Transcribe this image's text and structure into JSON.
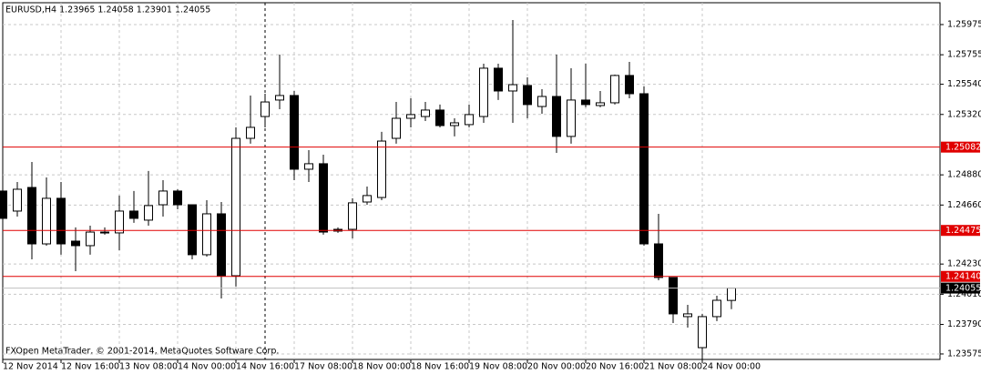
{
  "chart_data": {
    "type": "candlestick",
    "title": "EURUSD,H4  1.23965 1.24058 1.23901 1.24055",
    "annotation": "FXOpen MetaTrader, © 2001-2014, MetaQuotes Software Corp.",
    "categories": [
      "12 Nov 2014",
      null,
      null,
      null,
      "12 Nov 16:00",
      null,
      null,
      null,
      "13 Nov 08:00",
      null,
      null,
      null,
      "14 Nov 00:00",
      null,
      null,
      null,
      "14 Nov 16:00",
      null,
      null,
      null,
      "17 Nov 08:00",
      null,
      null,
      null,
      "18 Nov 00:00",
      null,
      null,
      null,
      "18 Nov 16:00",
      null,
      null,
      null,
      "19 Nov 08:00",
      null,
      null,
      null,
      "20 Nov 00:00",
      null,
      null,
      null,
      "20 Nov 16:00",
      null,
      null,
      null,
      "21 Nov 08:00",
      null,
      null,
      null,
      "24 Nov 00:00",
      null,
      null
    ],
    "open": [
      1.24762,
      1.24616,
      1.24788,
      1.24377,
      1.24709,
      1.24397,
      1.24364,
      1.24463,
      1.24457,
      1.24616,
      1.2455,
      1.24662,
      1.24762,
      1.24662,
      1.24298,
      1.24596,
      1.24145,
      1.25146,
      1.25305,
      1.25425,
      1.25458,
      1.24921,
      1.24961,
      1.24483,
      1.24483,
      1.24682,
      1.24715,
      1.25146,
      1.25292,
      1.25305,
      1.25352,
      1.25239,
      1.25246,
      1.25305,
      1.25657,
      1.25491,
      1.25531,
      1.25378,
      1.25451,
      1.2516,
      1.25425,
      1.25385,
      1.25405,
      1.25604,
      1.25471,
      1.24377,
      1.24132,
      1.23847,
      1.23621,
      1.23847,
      1.23965
    ],
    "high": [
      1.24795,
      1.24828,
      1.24974,
      1.24861,
      1.24828,
      1.24497,
      1.2451,
      1.24497,
      1.24729,
      1.24762,
      1.24908,
      1.24841,
      1.24775,
      1.24662,
      1.24695,
      1.24682,
      1.25226,
      1.25458,
      1.25471,
      1.25756,
      1.25491,
      1.2506,
      1.25027,
      1.24497,
      1.24709,
      1.24795,
      1.25193,
      1.25411,
      1.25438,
      1.25411,
      1.25392,
      1.25292,
      1.25392,
      1.2569,
      1.2569,
      1.26008,
      1.2559,
      1.25504,
      1.25756,
      1.25657,
      1.2569,
      1.25491,
      1.2561,
      1.25703,
      1.25524,
      1.24596,
      1.24132,
      1.23933,
      1.23867,
      1.23999,
      1.24058
    ],
    "low": [
      1.2453,
      1.24576,
      1.24264,
      1.24364,
      1.24298,
      1.24178,
      1.24298,
      1.24444,
      1.24331,
      1.2453,
      1.2451,
      1.24576,
      1.24629,
      1.24264,
      1.24284,
      1.23979,
      1.24066,
      1.25107,
      1.25226,
      1.25358,
      1.24841,
      1.24828,
      1.24444,
      1.24457,
      1.24417,
      1.24662,
      1.24695,
      1.25107,
      1.25226,
      1.25272,
      1.25226,
      1.2516,
      1.25226,
      1.25259,
      1.25425,
      1.25259,
      1.25292,
      1.25325,
      1.2504,
      1.25107,
      1.25372,
      1.25372,
      1.25392,
      1.25438,
      1.24364,
      1.24112,
      1.238,
      1.23767,
      1.23535,
      1.23814,
      1.23901
    ],
    "close": [
      1.24563,
      1.24775,
      1.24377,
      1.24709,
      1.24377,
      1.24364,
      1.24463,
      1.24457,
      1.24616,
      1.24563,
      1.24656,
      1.24762,
      1.24662,
      1.24298,
      1.24596,
      1.24145,
      1.25146,
      1.25226,
      1.25411,
      1.25458,
      1.24921,
      1.24961,
      1.24463,
      1.2447,
      1.24676,
      1.24729,
      1.25126,
      1.25292,
      1.25319,
      1.25352,
      1.25239,
      1.25259,
      1.25319,
      1.25657,
      1.25491,
      1.25537,
      1.25392,
      1.25451,
      1.2516,
      1.25425,
      1.25392,
      1.25405,
      1.25604,
      1.25471,
      1.24377,
      1.24132,
      1.23867,
      1.23867,
      1.23847,
      1.23966,
      1.24055
    ],
    "up_color": "#ffffff",
    "down_color": "#000000",
    "ylim": [
      1.23535,
      1.26134
    ],
    "yticks": [
      1.25975,
      {
        "value": 1.25755,
        "label": "1.25755"
      },
      {
        "value": 1.2554,
        "label": "1.25540"
      },
      {
        "value": 1.2532,
        "label": "1.25320"
      },
      {
        "value": 1.2488,
        "label": "1.24880"
      },
      {
        "value": 1.2466,
        "label": "1.24660"
      },
      {
        "value": 1.2423,
        "label": "1.24230"
      },
      {
        "value": 1.2401,
        "label": "1.24010"
      },
      {
        "value": 1.2379,
        "label": "1.23790"
      },
      {
        "value": 1.23575,
        "label": "1.23575"
      }
    ],
    "grid": true,
    "hlines": [
      {
        "value": 1.25082,
        "label": "1.25082",
        "color": "#e00000"
      },
      {
        "value": 1.24475,
        "label": "1.24475",
        "color": "#e00000"
      },
      {
        "value": 1.2414,
        "label": "1.24140",
        "color": "#e00000"
      },
      {
        "value": 1.24055,
        "label": "1.24055",
        "color": "#c0c0c0",
        "label_color": "#000000"
      }
    ]
  }
}
